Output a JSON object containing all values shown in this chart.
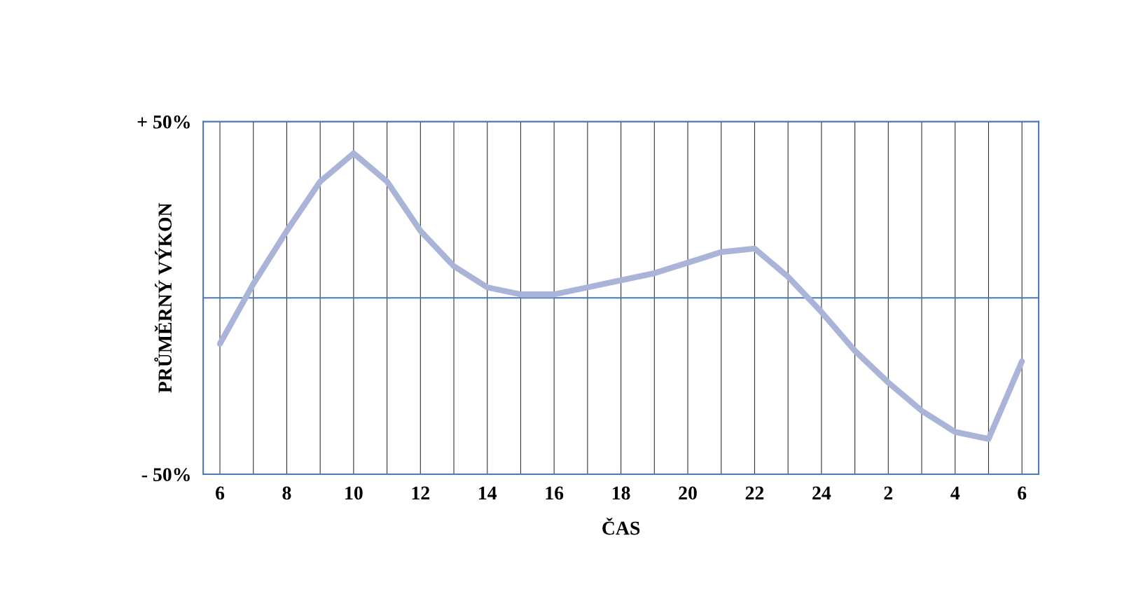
{
  "chart_data": {
    "type": "line",
    "xlabel": "ČAS",
    "ylabel": "PRŮMĚRNÝ VÝKON",
    "categories": [
      "6",
      null,
      "8",
      null,
      "10",
      null,
      "12",
      null,
      "14",
      null,
      "16",
      null,
      "18",
      null,
      "20",
      null,
      "22",
      null,
      "24",
      null,
      "2",
      null,
      "4",
      null,
      "6"
    ],
    "series": [
      {
        "color": "#a9b4d8",
        "values": [
          -13,
          4,
          19,
          33,
          41,
          33,
          19,
          9,
          3,
          1,
          1,
          3,
          5,
          7,
          10,
          13,
          14,
          6,
          -4,
          -15,
          -24,
          -32,
          -38,
          -40,
          -18
        ]
      }
    ],
    "ylim": [
      -50,
      50
    ],
    "yticks": [
      {
        "value": -50,
        "label": "- 50%"
      },
      {
        "value": 50,
        "label": "+ 50%"
      }
    ],
    "ref_lines": [
      {
        "axis": "y",
        "value": 0,
        "color": "#4a78b8"
      }
    ],
    "grid": "x",
    "line_style": "solid",
    "marker": "none"
  }
}
